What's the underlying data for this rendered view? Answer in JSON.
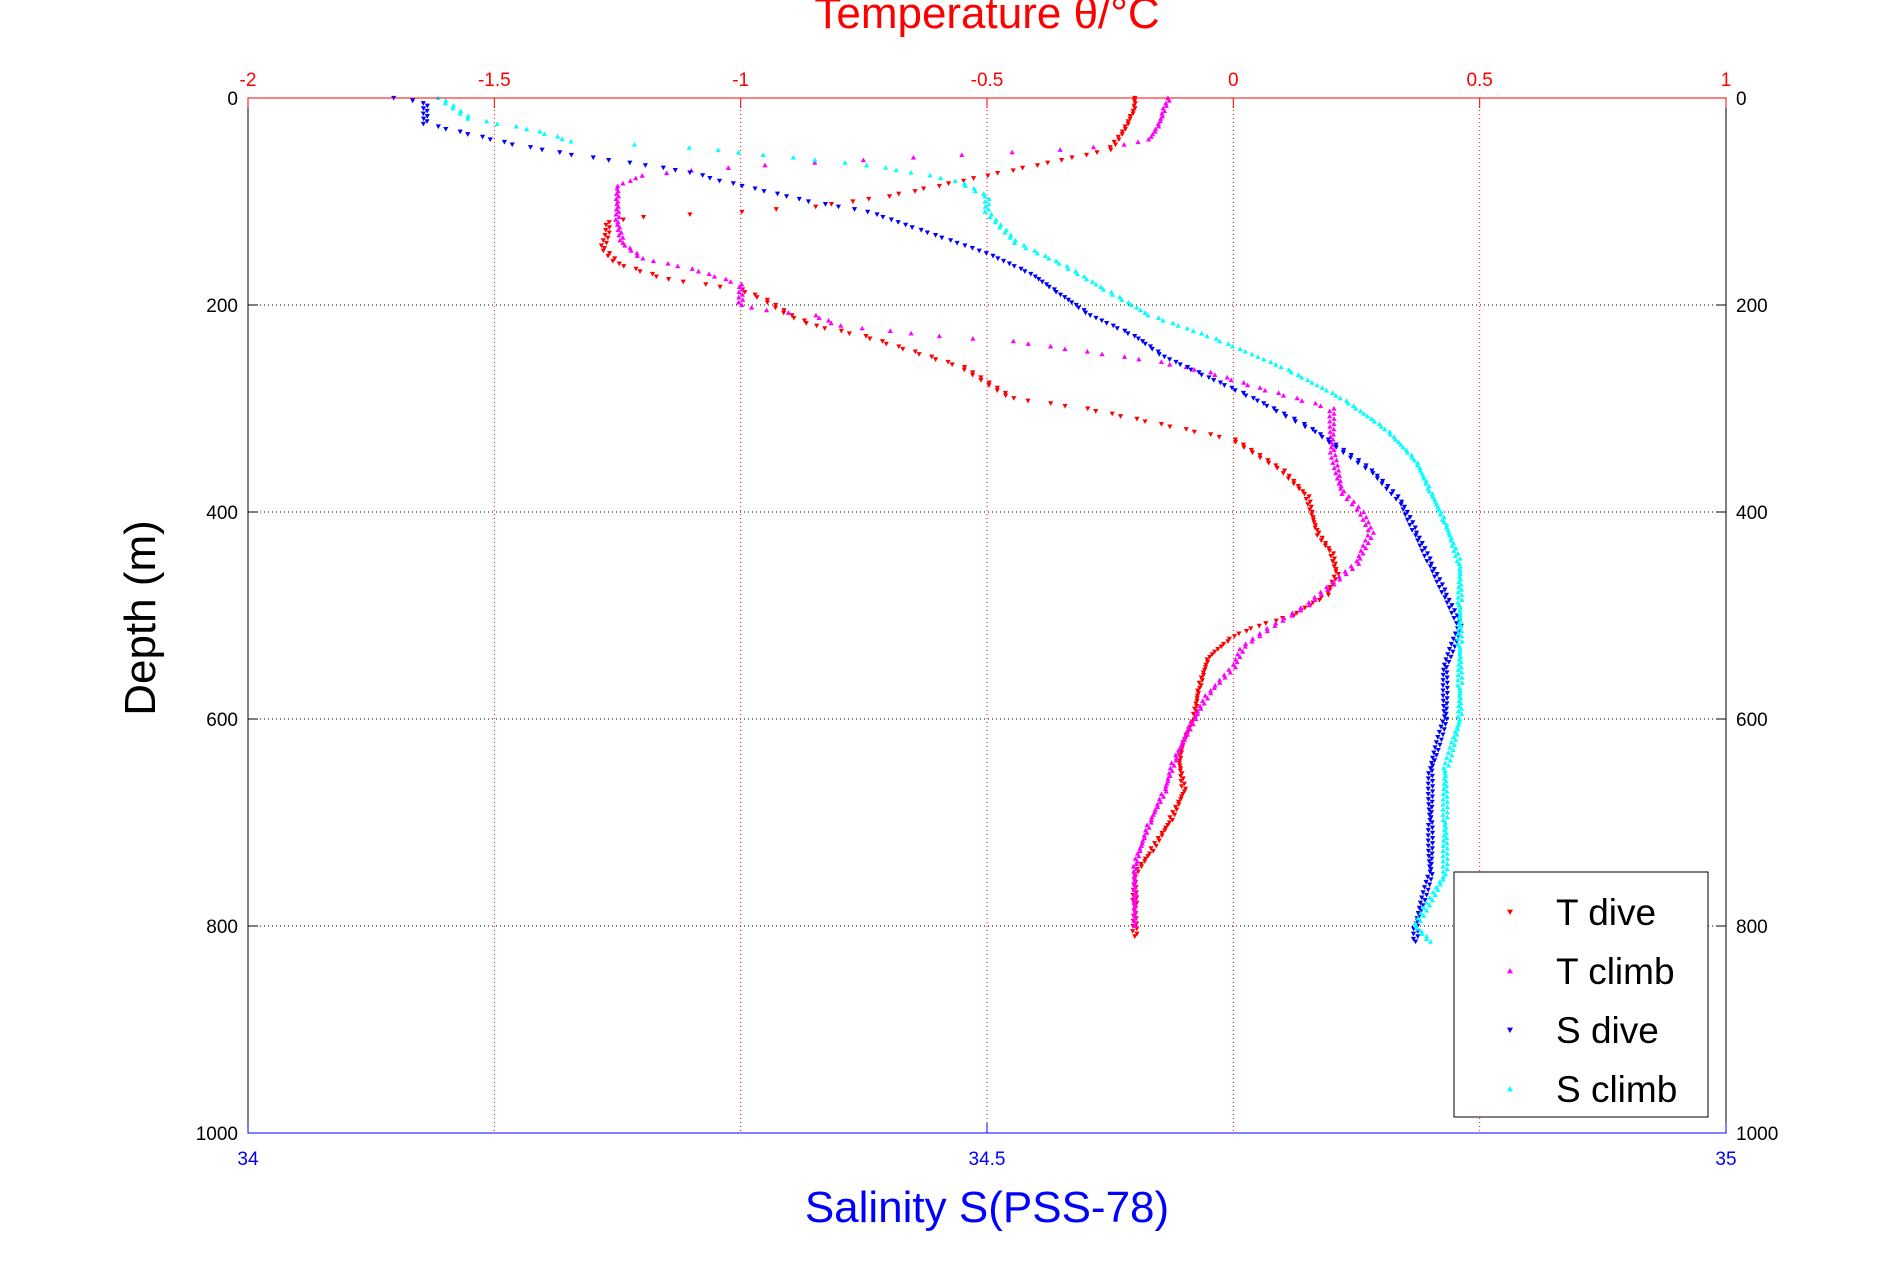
{
  "chart_data": {
    "type": "scatter",
    "title": "",
    "ylabel": "Depth (m)",
    "ylim": [
      0,
      1000
    ],
    "y_reversed": true,
    "yticks": [
      0,
      200,
      400,
      600,
      800,
      1000
    ],
    "top_axis": {
      "label": "Temperature θ/°C",
      "range": [
        -2,
        1
      ],
      "ticks": [
        -2,
        -1.5,
        -1,
        -0.5,
        0,
        0.5,
        1
      ],
      "color": "#ff0000",
      "grid": true
    },
    "bottom_axis": {
      "label": "Salinity S(PSS-78)",
      "range": [
        34,
        35
      ],
      "ticks": [
        34,
        34.5,
        35
      ],
      "color": "#0000ff"
    },
    "grid": true,
    "legend_position": "bottom-right",
    "series": [
      {
        "name": "T dive",
        "axis": "temperature",
        "color": "#ff0000",
        "marker": "triangle-down",
        "points": [
          [
            -0.2,
            0
          ],
          [
            -0.2,
            10
          ],
          [
            -0.21,
            20
          ],
          [
            -0.22,
            30
          ],
          [
            -0.25,
            50
          ],
          [
            -0.35,
            60
          ],
          [
            -0.5,
            75
          ],
          [
            -0.7,
            95
          ],
          [
            -0.85,
            105
          ],
          [
            -1.0,
            110
          ],
          [
            -1.2,
            115
          ],
          [
            -1.27,
            120
          ],
          [
            -1.27,
            130
          ],
          [
            -1.28,
            145
          ],
          [
            -1.25,
            160
          ],
          [
            -1.15,
            175
          ],
          [
            -1.0,
            185
          ],
          [
            -0.95,
            195
          ],
          [
            -0.9,
            210
          ],
          [
            -0.85,
            220
          ],
          [
            -0.75,
            230
          ],
          [
            -0.65,
            245
          ],
          [
            -0.55,
            260
          ],
          [
            -0.5,
            275
          ],
          [
            -0.45,
            290
          ],
          [
            -0.3,
            300
          ],
          [
            -0.2,
            310
          ],
          [
            -0.1,
            320
          ],
          [
            0,
            330
          ],
          [
            0.05,
            345
          ],
          [
            0.1,
            360
          ],
          [
            0.15,
            385
          ],
          [
            0.17,
            420
          ],
          [
            0.2,
            440
          ],
          [
            0.21,
            460
          ],
          [
            0.19,
            480
          ],
          [
            0.12,
            500
          ],
          [
            0.05,
            510
          ],
          [
            0,
            520
          ],
          [
            -0.05,
            540
          ],
          [
            -0.07,
            570
          ],
          [
            -0.08,
            600
          ],
          [
            -0.1,
            620
          ],
          [
            -0.11,
            640
          ],
          [
            -0.1,
            670
          ],
          [
            -0.13,
            700
          ],
          [
            -0.17,
            730
          ],
          [
            -0.2,
            750
          ],
          [
            -0.2,
            780
          ],
          [
            -0.2,
            810
          ]
        ]
      },
      {
        "name": "T climb",
        "axis": "temperature",
        "color": "#ff00ff",
        "marker": "triangle-up",
        "points": [
          [
            -0.13,
            0
          ],
          [
            -0.14,
            10
          ],
          [
            -0.15,
            25
          ],
          [
            -0.17,
            40
          ],
          [
            -0.22,
            45
          ],
          [
            -0.35,
            50
          ],
          [
            -0.55,
            55
          ],
          [
            -0.75,
            60
          ],
          [
            -0.95,
            65
          ],
          [
            -1.1,
            70
          ],
          [
            -1.2,
            75
          ],
          [
            -1.25,
            85
          ],
          [
            -1.25,
            100
          ],
          [
            -1.25,
            120
          ],
          [
            -1.24,
            140
          ],
          [
            -1.2,
            155
          ],
          [
            -1.1,
            165
          ],
          [
            -1.0,
            180
          ],
          [
            -1.0,
            200
          ],
          [
            -0.95,
            205
          ],
          [
            -0.85,
            210
          ],
          [
            -0.8,
            220
          ],
          [
            -0.6,
            230
          ],
          [
            -0.45,
            235
          ],
          [
            -0.3,
            245
          ],
          [
            -0.15,
            255
          ],
          [
            -0.05,
            265
          ],
          [
            0.05,
            280
          ],
          [
            0.2,
            300
          ],
          [
            0.2,
            340
          ],
          [
            0.22,
            380
          ],
          [
            0.26,
            400
          ],
          [
            0.28,
            420
          ],
          [
            0.25,
            450
          ],
          [
            0.2,
            470
          ],
          [
            0.15,
            490
          ],
          [
            0.08,
            510
          ],
          [
            0.02,
            530
          ],
          [
            0,
            550
          ],
          [
            -0.05,
            575
          ],
          [
            -0.08,
            600
          ],
          [
            -0.12,
            640
          ],
          [
            -0.14,
            670
          ],
          [
            -0.17,
            700
          ],
          [
            -0.2,
            740
          ],
          [
            -0.2,
            770
          ],
          [
            -0.2,
            800
          ]
        ]
      },
      {
        "name": "S dive",
        "axis": "salinity",
        "color": "#0000ff",
        "marker": "triangle-down",
        "points": [
          [
            34.1,
            0
          ],
          [
            34.12,
            5
          ],
          [
            34.12,
            15
          ],
          [
            34.12,
            25
          ],
          [
            34.15,
            35
          ],
          [
            34.18,
            45
          ],
          [
            34.22,
            55
          ],
          [
            34.27,
            65
          ],
          [
            34.3,
            72
          ],
          [
            34.32,
            80
          ],
          [
            34.35,
            90
          ],
          [
            34.38,
            100
          ],
          [
            34.42,
            110
          ],
          [
            34.45,
            125
          ],
          [
            34.47,
            135
          ],
          [
            34.5,
            150
          ],
          [
            34.53,
            170
          ],
          [
            34.55,
            190
          ],
          [
            34.57,
            210
          ],
          [
            34.6,
            230
          ],
          [
            34.62,
            250
          ],
          [
            34.65,
            270
          ],
          [
            34.68,
            290
          ],
          [
            34.72,
            320
          ],
          [
            34.76,
            360
          ],
          [
            34.78,
            390
          ],
          [
            34.79,
            420
          ],
          [
            34.8,
            450
          ],
          [
            34.81,
            480
          ],
          [
            34.82,
            510
          ],
          [
            34.81,
            550
          ],
          [
            34.81,
            600
          ],
          [
            34.8,
            650
          ],
          [
            34.8,
            700
          ],
          [
            34.8,
            750
          ],
          [
            34.79,
            800
          ],
          [
            34.79,
            815
          ]
        ]
      },
      {
        "name": "S climb",
        "axis": "salinity",
        "color": "#00ffff",
        "marker": "triangle-up",
        "points": [
          [
            34.13,
            0
          ],
          [
            34.14,
            10
          ],
          [
            34.15,
            20
          ],
          [
            34.19,
            30
          ],
          [
            34.22,
            42
          ],
          [
            34.3,
            48
          ],
          [
            34.35,
            55
          ],
          [
            34.42,
            65
          ],
          [
            34.45,
            72
          ],
          [
            34.48,
            80
          ],
          [
            34.5,
            95
          ],
          [
            34.5,
            110
          ],
          [
            34.51,
            125
          ],
          [
            34.52,
            140
          ],
          [
            34.55,
            160
          ],
          [
            34.58,
            185
          ],
          [
            34.61,
            210
          ],
          [
            34.65,
            230
          ],
          [
            34.7,
            260
          ],
          [
            34.74,
            290
          ],
          [
            34.77,
            320
          ],
          [
            34.79,
            350
          ],
          [
            34.8,
            380
          ],
          [
            34.81,
            410
          ],
          [
            34.82,
            450
          ],
          [
            34.82,
            490
          ],
          [
            34.82,
            530
          ],
          [
            34.82,
            570
          ],
          [
            34.82,
            600
          ],
          [
            34.81,
            650
          ],
          [
            34.81,
            700
          ],
          [
            34.81,
            750
          ],
          [
            34.79,
            800
          ],
          [
            34.8,
            815
          ]
        ]
      }
    ]
  }
}
